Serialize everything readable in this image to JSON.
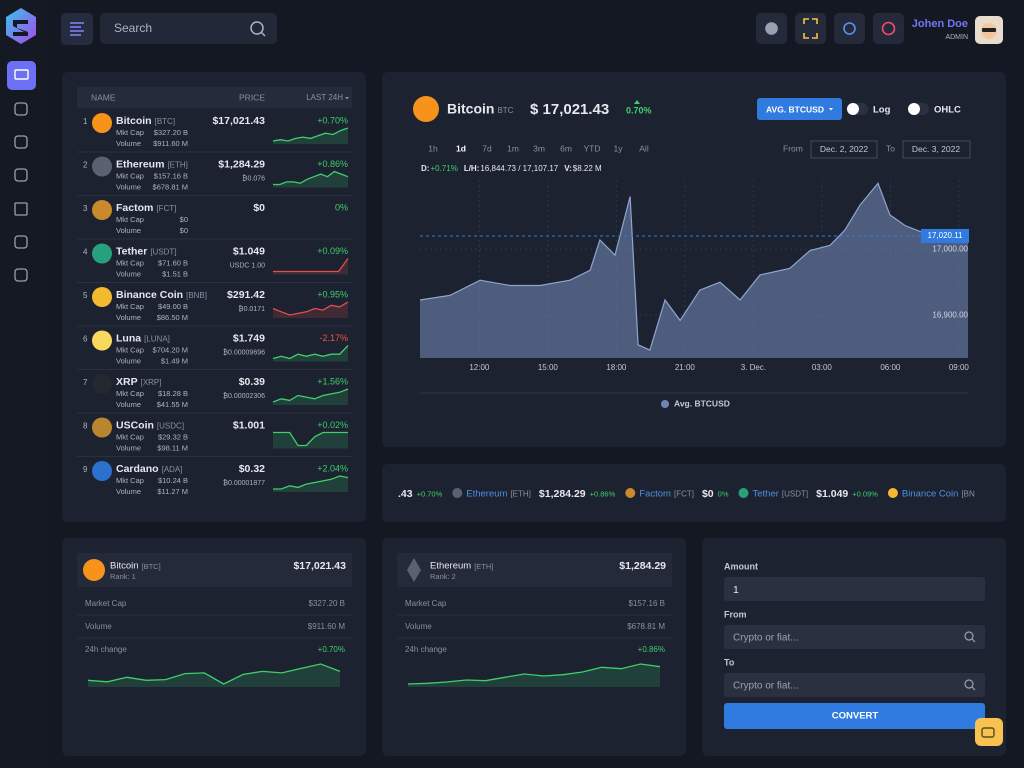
{
  "header": {
    "search_placeholder": "Search",
    "user_name": "Johen Doe",
    "user_role": "ADMIN"
  },
  "market_table": {
    "columns": [
      "NAME",
      "PRICE",
      "LAST 24H"
    ],
    "mkt_cap_label": "Mkt Cap",
    "volume_label": "Volume",
    "rows": [
      {
        "rank": 1,
        "name": "Bitcoin",
        "symbol": "[BTC]",
        "mkt_cap": "$327.20 B",
        "volume": "$911.60 M",
        "price": "$17,021.43",
        "change": "+0.70%",
        "icon_color": "#f7931a",
        "spark_color": "#3ecf6a",
        "spark": [
          3,
          3.5,
          3,
          4,
          4.5,
          4,
          5,
          6,
          5.5,
          7,
          8
        ]
      },
      {
        "rank": 2,
        "name": "Ethereum",
        "symbol": "[ETH]",
        "mkt_cap": "$157.16 B",
        "volume": "$678.81 M",
        "price": "$1,284.29",
        "sub_price": "₿0.076",
        "change": "+0.86%",
        "icon_color": "#5b6170",
        "spark_color": "#3ecf6a",
        "spark": [
          2,
          2,
          3,
          3,
          2.5,
          4,
          5,
          6,
          5,
          7,
          6,
          5
        ]
      },
      {
        "rank": 3,
        "name": "Factom",
        "symbol": "[FCT]",
        "mkt_cap": "$0",
        "volume": "$0",
        "price": "$0",
        "change": "0%",
        "icon_color": "#c98a2b"
      },
      {
        "rank": 4,
        "name": "Tether",
        "symbol": "[USDT]",
        "mkt_cap": "$71.60 B",
        "volume": "$1.51 B",
        "price": "$1.049",
        "sub_price": "USDC 1.00",
        "change": "+0.09%",
        "icon_color": "#26a17b",
        "spark_color": "#e0524a",
        "spark": [
          2,
          2,
          2,
          2,
          2,
          2,
          2,
          2,
          5
        ]
      },
      {
        "rank": 5,
        "name": "Binance Coin",
        "symbol": "[BNB]",
        "mkt_cap": "$49.00 B",
        "volume": "$86.50 M",
        "price": "$291.42",
        "sub_price": "₿0.0171",
        "change": "+0.95%",
        "icon_color": "#f3ba2f",
        "spark_color": "#e0524a",
        "spark": [
          5,
          4,
          3,
          3.5,
          4,
          5,
          4.5,
          6,
          5.5,
          7
        ]
      },
      {
        "rank": 6,
        "name": "Luna",
        "symbol": "[LUNA]",
        "mkt_cap": "$704.20 M",
        "volume": "$1.49 M",
        "price": "$1.749",
        "sub_price": "₿0.00009696",
        "change": "-2.17%",
        "icon_color": "#f9d85e",
        "spark_color": "#3ecf6a",
        "spark": [
          3,
          3.5,
          3,
          4,
          3.5,
          4,
          3.5,
          4,
          4,
          6
        ]
      },
      {
        "rank": 7,
        "name": "XRP",
        "symbol": "[XRP]",
        "mkt_cap": "$18.28 B",
        "volume": "$41.55 M",
        "price": "$0.39",
        "sub_price": "₿0.00002306",
        "change": "+1.56%",
        "icon_color": "#23292f",
        "spark_color": "#3ecf6a",
        "spark": [
          2,
          3,
          2.5,
          4,
          3.5,
          3,
          4,
          4.5,
          5,
          6
        ]
      },
      {
        "rank": 8,
        "name": "USCoin",
        "symbol": "[USDC]",
        "mkt_cap": "$29.32 B",
        "volume": "$98.11 M",
        "price": "$1.001",
        "change": "+0.02%",
        "icon_color": "#b8862e",
        "spark_color": "#3ecf6a",
        "spark": [
          6,
          6,
          6,
          3,
          3,
          5,
          6,
          6,
          6,
          6
        ]
      },
      {
        "rank": 9,
        "name": "Cardano",
        "symbol": "[ADA]",
        "mkt_cap": "$10.24 B",
        "volume": "$11.27 M",
        "price": "$0.32",
        "sub_price": "₿0.00001877",
        "change": "+2.04%",
        "icon_color": "#2a71d0",
        "spark_color": "#3ecf6a",
        "spark": [
          2,
          2,
          3,
          2.5,
          3.5,
          4,
          4.5,
          5,
          6,
          5.5
        ]
      }
    ]
  },
  "price_chart": {
    "coin": "Bitcoin",
    "symbol": "BTC",
    "price": "$ 17,021.43",
    "change": "0.70%",
    "pair_button": "AVG. BTCUSD",
    "toggles": [
      "Log",
      "OHLC"
    ],
    "ranges": [
      "1h",
      "1d",
      "7d",
      "1m",
      "3m",
      "6m",
      "YTD",
      "1y",
      "All"
    ],
    "active_range": 1,
    "from_label": "From",
    "from_date": "Dec. 2, 2022",
    "to_label": "To",
    "to_date": "Dec. 3, 2022",
    "stats": [
      {
        "label": "D:",
        "value": "+0.71%"
      },
      {
        "label": "L/H:",
        "value": "16,844.73 / 17,107.17"
      },
      {
        "label": "V:",
        "value": "$8.22 M"
      }
    ],
    "series_name": "Avg. BTCUSD",
    "color": "#6f86b2",
    "x": [
      9.4,
      10.71,
      12.03,
      13.34,
      14.66,
      15.97,
      16.85,
      17.28,
      17.94,
      18.6,
      18.95,
      19.47,
      20.13,
      20.79,
      21.66,
      22.54,
      23.42,
      24.29,
      25.6,
      26.48,
      27.36,
      28.01,
      28.67,
      29.46,
      29.98,
      30.64,
      31.74,
      32.61,
      33.4
    ],
    "values": [
      16923,
      16930,
      16953,
      16945,
      16945,
      16953,
      16968,
      17014,
      16991,
      17080,
      16855,
      16847,
      16923,
      16892,
      16938,
      16950,
      16923,
      16961,
      16971,
      16998,
      17006,
      17029,
      17067,
      17100,
      17052,
      17036,
      17021,
      17017,
      17014
    ],
    "xlim": [
      9.4,
      33.4
    ],
    "ylim": [
      16835,
      17105
    ],
    "xticks": [
      {
        "value": 12,
        "label": "12:00"
      },
      {
        "value": 15,
        "label": "15:00"
      },
      {
        "value": 18,
        "label": "18:00"
      },
      {
        "value": 21,
        "label": "21:00"
      },
      {
        "value": 24,
        "label": "3. Dec."
      },
      {
        "value": 27,
        "label": "03:00"
      },
      {
        "value": 30,
        "label": "06:00"
      },
      {
        "value": 33,
        "label": "09:00"
      }
    ],
    "yticks": [
      {
        "value": 17000,
        "label": "17,000.00"
      },
      {
        "value": 16900,
        "label": "16,900.00"
      }
    ],
    "current_price": {
      "value": 17020.11,
      "label": "17,020.11"
    }
  },
  "ticker": [
    {
      "price": ".43",
      "change": "+0.70%"
    },
    {
      "name": "Ethereum",
      "symbol": "[ETH]",
      "price": "$1,284.29",
      "change": "+0.86%",
      "icon_color": "#5b6170"
    },
    {
      "name": "Factom",
      "symbol": "[FCT]",
      "price": "$0",
      "change": "0%",
      "icon_color": "#c98a2b"
    },
    {
      "name": "Tether",
      "symbol": "[USDT]",
      "price": "$1.049",
      "change": "+0.09%",
      "icon_color": "#26a17b"
    },
    {
      "name": "Binance Coin",
      "symbol": "[BN",
      "icon_color": "#f3ba2f"
    }
  ],
  "cards": [
    {
      "name": "Bitcoin",
      "symbol": "[BTC]",
      "rank": "Rank: 1",
      "price": "$17,021.43",
      "icon_color": "#f7931a",
      "rows": [
        {
          "label": "Market Cap",
          "value": "$327.20 B"
        },
        {
          "label": "Volume",
          "value": "$911.60 M"
        },
        {
          "label": "24h change",
          "value": "+0.70%"
        }
      ],
      "spark": [
        3,
        2.8,
        3.4,
        3,
        3.1,
        3.9,
        4,
        2.5,
        3.8,
        4.2,
        4,
        4.6,
        5.2,
        4.2
      ]
    },
    {
      "name": "Ethereum",
      "symbol": "[ETH]",
      "rank": "Rank: 2",
      "price": "$1,284.29",
      "icon_color": "#5b6170",
      "rows": [
        {
          "label": "Market Cap",
          "value": "$157.16 B"
        },
        {
          "label": "Volume",
          "value": "$678.81 M"
        },
        {
          "label": "24h change",
          "value": "+0.86%"
        }
      ],
      "spark": [
        2,
        2.1,
        2.3,
        2.6,
        2.5,
        3,
        3.5,
        3.2,
        3.4,
        3.8,
        4.5,
        4.3,
        5,
        4.6
      ]
    }
  ],
  "converter": {
    "amount_label": "Amount",
    "amount": "1",
    "from_label": "From",
    "from_placeholder": "Crypto or fiat...",
    "to_label": "To",
    "to_placeholder": "Crypto or fiat...",
    "button": "CONVERT"
  }
}
